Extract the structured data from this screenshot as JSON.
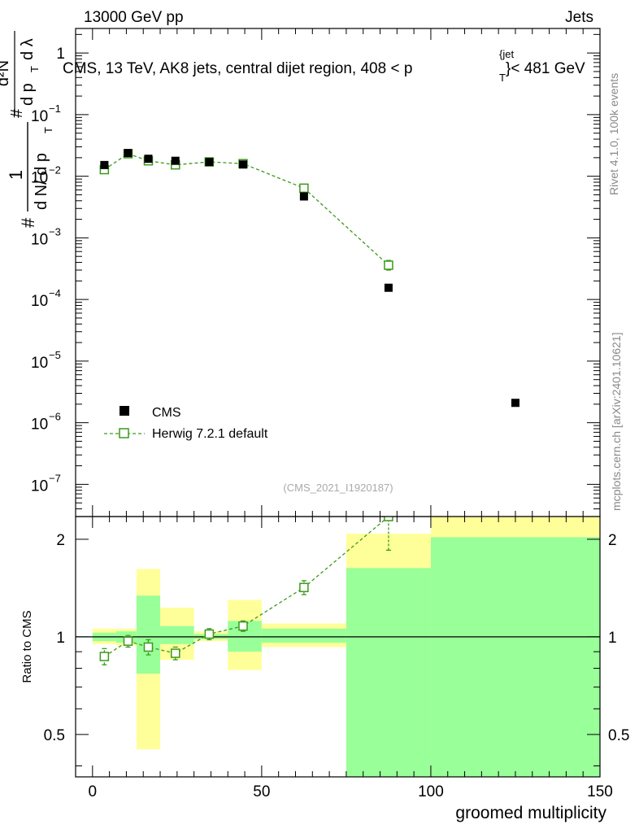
{
  "header": {
    "left": "13000 GeV pp",
    "right": "Jets"
  },
  "side_labels": {
    "rivet": "Rivet 4.1.0,  100k events",
    "mcplots": "mcplots.cern.ch [arXiv:2401.10621]"
  },
  "colors": {
    "data": "#000000",
    "mc": "#3a9a1a",
    "band_inner": "#99ff99",
    "band_outer": "#ffff99"
  },
  "chart_data": [
    {
      "type": "scatter",
      "title": "CMS, 13 TeV, AK8 jets, central dijet region, 408 < p_T^{jet} < 481 GeV",
      "title_parts": {
        "prefix": "CMS, 13 TeV, AK8 jets, central dijet region, 408 <",
        "var": "p",
        "sub": "T",
        "sup": "{jet",
        "suffix": "}< 481 GeV"
      },
      "ylabel": "1/N dN/dλ (d²N / dp_T dλ)",
      "ylabel_parts": {
        "frac_top": "1",
        "frac_bottom": "d N/ d p",
        "frac_bottom_sub": "T",
        "lead": "#",
        "inner_top": "d²N",
        "inner_bottom": "d p",
        "inner_bottom_sub": "T",
        "inner_tail": "d λ",
        "inner_hash": "#"
      },
      "yscale": "log",
      "ylim": [
        3e-08,
        2.5
      ],
      "xlim": [
        -5,
        150
      ],
      "y_ticks": [
        {
          "value": 1,
          "base": "1",
          "exp": ""
        },
        {
          "value": 0.1,
          "base": "10",
          "exp": "−1"
        },
        {
          "value": 0.01,
          "base": "10",
          "exp": "−2"
        },
        {
          "value": 0.001,
          "base": "10",
          "exp": "−3"
        },
        {
          "value": 0.0001,
          "base": "10",
          "exp": "−4"
        },
        {
          "value": 1e-05,
          "base": "10",
          "exp": "−5"
        },
        {
          "value": 1e-06,
          "base": "10",
          "exp": "−6"
        },
        {
          "value": 1e-07,
          "base": "10",
          "exp": "−7"
        }
      ],
      "series": [
        {
          "name": "CMS",
          "marker": "filled-square",
          "x": [
            3.5,
            10.5,
            16.5,
            24.5,
            34.5,
            44.5,
            62.5,
            87.5,
            125
          ],
          "y": [
            0.0152,
            0.0238,
            0.0192,
            0.0178,
            0.017,
            0.0155,
            0.0047,
            0.000155,
            2.1e-06
          ]
        },
        {
          "name": "Herwig 7.2.1 default",
          "marker": "open-square",
          "line": "dashed",
          "x": [
            3.5,
            10.5,
            16.5,
            24.5,
            34.5,
            44.5,
            62.5,
            87.5
          ],
          "y": [
            0.0128,
            0.0232,
            0.0178,
            0.0153,
            0.0171,
            0.016,
            0.0064,
            0.00036
          ],
          "yerr_lo": [
            0.0008,
            0.001,
            0.0009,
            0.0008,
            0.0008,
            0.0008,
            0.0004,
            6e-05
          ],
          "yerr_hi": [
            0.0008,
            0.001,
            0.0009,
            0.0008,
            0.0008,
            0.0008,
            0.0004,
            7e-05
          ]
        }
      ],
      "legend": [
        "CMS",
        "Herwig 7.2.1 default"
      ],
      "legend_position": "lower-left",
      "watermark": "(CMS_2021_I1920187)"
    },
    {
      "type": "scatter",
      "ylabel": "Ratio to CMS",
      "xlabel": "groomed multiplicity",
      "xlim": [
        -5,
        150
      ],
      "ylim": [
        0.37,
        2.35
      ],
      "yscale": "log",
      "y_ticks": [
        {
          "value": 0.5,
          "label": "0.5"
        },
        {
          "value": 1,
          "label": "1"
        },
        {
          "value": 2,
          "label": "2"
        }
      ],
      "x_ticks": [
        {
          "value": 0,
          "label": "0"
        },
        {
          "value": 50,
          "label": "50"
        },
        {
          "value": 100,
          "label": "100"
        },
        {
          "value": 150,
          "label": "150"
        }
      ],
      "bands": {
        "edges": [
          0,
          7,
          13,
          20,
          30,
          40,
          50,
          75,
          100,
          150
        ],
        "inner_lo": [
          0.97,
          0.96,
          0.77,
          0.95,
          0.985,
          0.9,
          0.96,
          0.35,
          0.35
        ],
        "inner_hi": [
          1.03,
          1.04,
          1.34,
          1.08,
          1.02,
          1.12,
          1.06,
          1.63,
          2.03
        ],
        "outer_lo": [
          0.95,
          0.94,
          0.45,
          0.85,
          0.97,
          0.79,
          0.93,
          0.35,
          0.35
        ],
        "outer_hi": [
          1.06,
          1.06,
          1.62,
          1.23,
          1.04,
          1.3,
          1.1,
          2.08,
          2.35
        ]
      },
      "series": [
        {
          "name": "Herwig 7.2.1 default",
          "marker": "open-square",
          "line": "dashed",
          "x": [
            3.5,
            10.5,
            16.5,
            24.5,
            34.5,
            44.5,
            62.5,
            87.5
          ],
          "y": [
            0.87,
            0.97,
            0.93,
            0.89,
            1.02,
            1.08,
            1.42,
            2.35
          ],
          "yerr_lo": [
            0.05,
            0.04,
            0.05,
            0.04,
            0.04,
            0.04,
            0.07,
            0.5
          ],
          "yerr_hi": [
            0.05,
            0.04,
            0.05,
            0.04,
            0.04,
            0.04,
            0.07,
            0.0
          ]
        }
      ]
    }
  ]
}
